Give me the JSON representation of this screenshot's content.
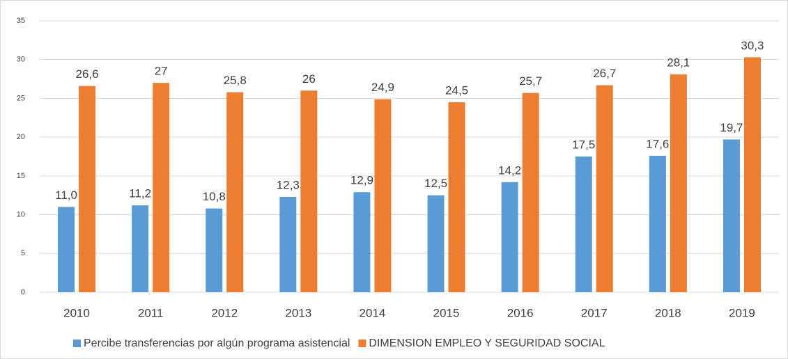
{
  "chart_data": {
    "type": "bar",
    "categories": [
      "2010",
      "2011",
      "2012",
      "2013",
      "2014",
      "2015",
      "2016",
      "2017",
      "2018",
      "2019"
    ],
    "series": [
      {
        "name": "Percibe transferencias por algún programa asistencial",
        "color": "#5b9bd5",
        "values": [
          11.0,
          11.2,
          10.8,
          12.3,
          12.9,
          12.5,
          14.2,
          17.5,
          17.6,
          19.7
        ],
        "value_labels": [
          "11,0",
          "11,2",
          "10,8",
          "12,3",
          "12,9",
          "12,5",
          "14,2",
          "17,5",
          "17,6",
          "19,7"
        ]
      },
      {
        "name": "DIMENSION EMPLEO Y SEGURIDAD SOCIAL",
        "color": "#ed7d31",
        "values": [
          26.6,
          27,
          25.8,
          26,
          24.9,
          24.5,
          25.7,
          26.7,
          28.1,
          30.3
        ],
        "value_labels": [
          "26,6",
          "27",
          "25,8",
          "26",
          "24,9",
          "24,5",
          "25,7",
          "26,7",
          "28,1",
          "30,3"
        ]
      }
    ],
    "ylim": [
      0,
      35
    ],
    "yticks": [
      0,
      5,
      10,
      15,
      20,
      25,
      30,
      35
    ],
    "grid": true,
    "legend": "bottom"
  }
}
